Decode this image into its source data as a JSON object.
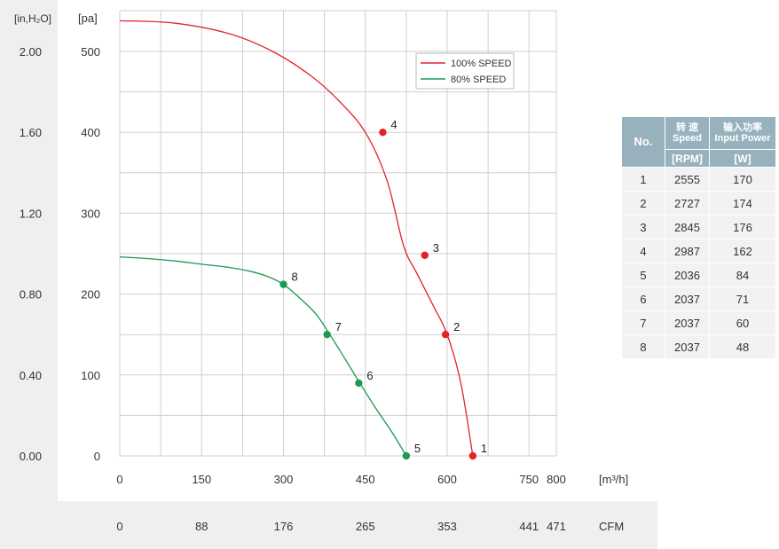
{
  "chart_data": {
    "type": "line",
    "title": "",
    "xlabel": "[m³/h]",
    "x_unit": "[m³/h]",
    "x_secondary_unit": "CFM",
    "ylabel": "[pa]",
    "y_unit": "[pa]",
    "y_secondary_unit": "[in,H₂O]",
    "xlim": [
      0,
      800
    ],
    "ylim": [
      0,
      500
    ],
    "x_ticks": [
      0,
      150,
      300,
      450,
      600,
      750,
      800
    ],
    "x_tick_labels": [
      "0",
      "150",
      "300",
      "450",
      "600",
      "750",
      "800"
    ],
    "cfm_tick_labels": [
      "0",
      "88",
      "176",
      "265",
      "353",
      "441",
      "471"
    ],
    "y_ticks": [
      0,
      100,
      200,
      300,
      400,
      500
    ],
    "y_tick_labels": [
      "0",
      "100",
      "200",
      "300",
      "400",
      "500"
    ],
    "in_h2o_tick_labels": [
      "0.00",
      "0.40",
      "0.80",
      "1.20",
      "1.60",
      "2.00"
    ],
    "grid": true,
    "legend_position": "top-right",
    "series": [
      {
        "name": "100% SPEED",
        "color": "#e32228",
        "x": [
          0,
          100,
          200,
          280,
          350,
          400,
          450,
          490,
          520,
          545,
          575,
          600,
          625,
          647
        ],
        "y": [
          538,
          535,
          522,
          500,
          470,
          440,
          400,
          340,
          260,
          225,
          185,
          150,
          90,
          0
        ],
        "points": [
          {
            "label": "4",
            "x": 482,
            "y": 400
          },
          {
            "label": "3",
            "x": 559,
            "y": 248
          },
          {
            "label": "2",
            "x": 597,
            "y": 150
          },
          {
            "label": "1",
            "x": 647,
            "y": 0
          }
        ]
      },
      {
        "name": "80%  SPEED",
        "color": "#1a9a52",
        "x": [
          0,
          50,
          100,
          150,
          200,
          240,
          270,
          300,
          330,
          360,
          385,
          410,
          440,
          470,
          500,
          525
        ],
        "y": [
          246,
          244,
          241,
          237,
          233,
          228,
          222,
          212,
          195,
          175,
          150,
          123,
          90,
          58,
          28,
          0
        ],
        "points": [
          {
            "label": "8",
            "x": 300,
            "y": 212
          },
          {
            "label": "7",
            "x": 380,
            "y": 150
          },
          {
            "label": "6",
            "x": 438,
            "y": 90
          },
          {
            "label": "5",
            "x": 525,
            "y": 0
          }
        ]
      }
    ]
  },
  "table": {
    "headers": {
      "no": "No.",
      "speed_cn": "转 速",
      "speed_en": "Speed",
      "power_cn": "输入功率",
      "power_en": "Input Power",
      "speed_unit": "[RPM]",
      "power_unit": "[W]"
    },
    "rows": [
      {
        "no": "1",
        "speed": "2555",
        "power": "170"
      },
      {
        "no": "2",
        "speed": "2727",
        "power": "174"
      },
      {
        "no": "3",
        "speed": "2845",
        "power": "176"
      },
      {
        "no": "4",
        "speed": "2987",
        "power": "162"
      },
      {
        "no": "5",
        "speed": "2036",
        "power": "84"
      },
      {
        "no": "6",
        "speed": "2037",
        "power": "71"
      },
      {
        "no": "7",
        "speed": "2037",
        "power": "60"
      },
      {
        "no": "8",
        "speed": "2037",
        "power": "48"
      }
    ]
  }
}
